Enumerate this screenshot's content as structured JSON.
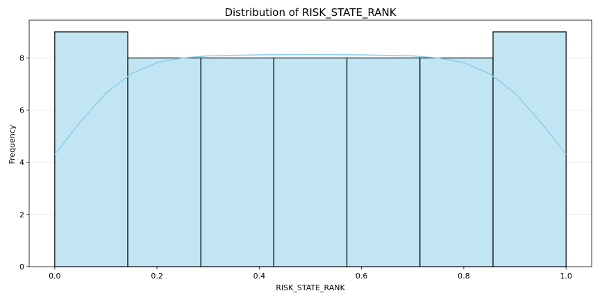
{
  "chart_data": {
    "type": "bar",
    "title": "Distribution of RISK_STATE_RANK",
    "xlabel": "RISK_STATE_RANK",
    "ylabel": "Frequency",
    "xlim": [
      -0.05,
      1.05
    ],
    "ylim": [
      0,
      9.45
    ],
    "xticks": [
      "0.0",
      "0.2",
      "0.4",
      "0.6",
      "0.8",
      "1.0"
    ],
    "yticks": [
      "0",
      "2",
      "4",
      "6",
      "8"
    ],
    "bins": [
      {
        "start": 0.0,
        "end": 0.142857,
        "count": 9
      },
      {
        "start": 0.142857,
        "end": 0.285714,
        "count": 8
      },
      {
        "start": 0.285714,
        "end": 0.428571,
        "count": 8
      },
      {
        "start": 0.428571,
        "end": 0.571429,
        "count": 8
      },
      {
        "start": 0.571429,
        "end": 0.714286,
        "count": 8
      },
      {
        "start": 0.714286,
        "end": 0.857143,
        "count": 8
      },
      {
        "start": 0.857143,
        "end": 1.0,
        "count": 9
      }
    ],
    "kde": {
      "x": [
        0.0,
        0.05,
        0.1,
        0.15,
        0.2,
        0.25,
        0.3,
        0.4,
        0.5,
        0.6,
        0.7,
        0.75,
        0.8,
        0.85,
        0.9,
        0.95,
        1.0
      ],
      "y": [
        4.3,
        5.55,
        6.65,
        7.4,
        7.82,
        8.0,
        8.08,
        8.12,
        8.13,
        8.12,
        8.08,
        8.0,
        7.82,
        7.4,
        6.65,
        5.55,
        4.3
      ]
    },
    "grid": {
      "y": true,
      "x": false
    },
    "colors": {
      "bar_fill": "#c2e5f4",
      "bar_edge": "#000000",
      "kde_line": "#87ceeb",
      "grid": "#c8c8c8"
    }
  }
}
